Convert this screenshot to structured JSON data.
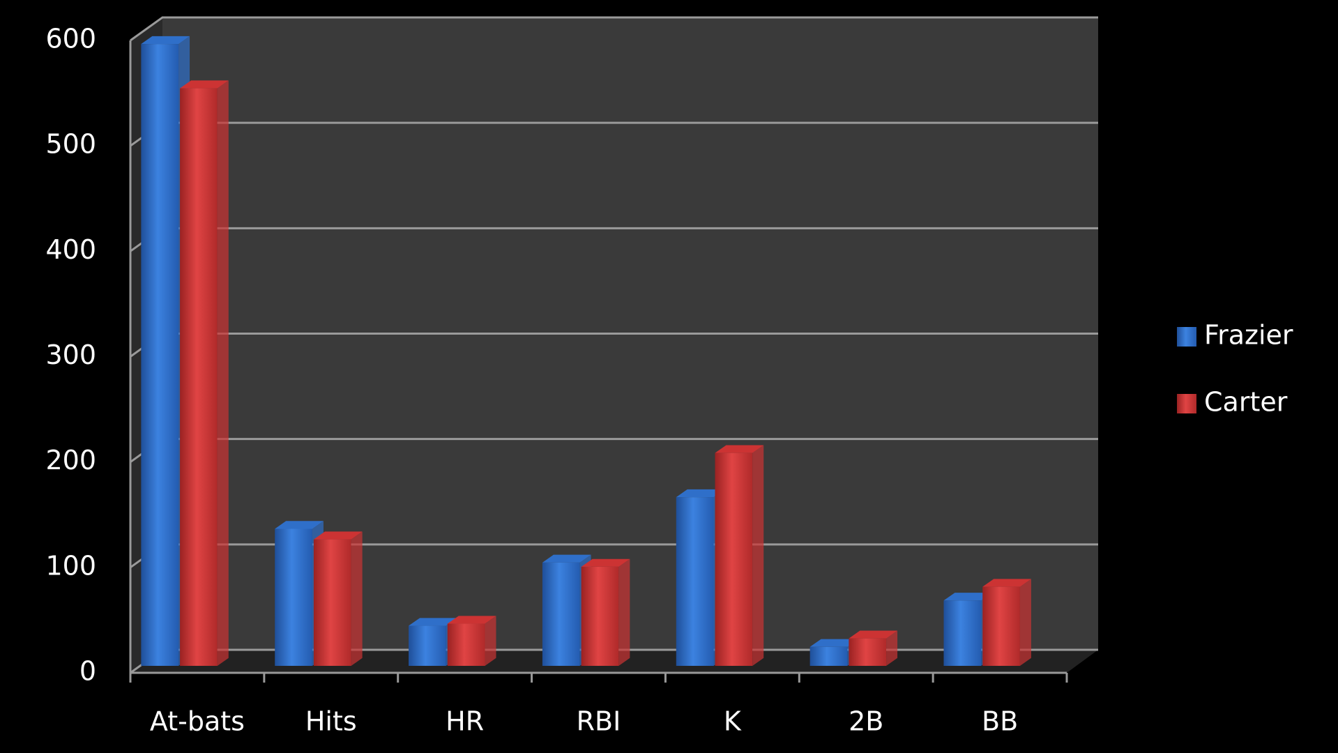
{
  "chart_data": {
    "type": "bar",
    "categories": [
      "At-bats",
      "Hits",
      "HR",
      "RBI",
      "K",
      "2B",
      "BB"
    ],
    "series": [
      {
        "name": "Frazier",
        "color": "#2f6fc9",
        "values": [
          590,
          130,
          38,
          98,
          160,
          18,
          62
        ]
      },
      {
        "name": "Carter",
        "color": "#cc3333",
        "values": [
          548,
          120,
          40,
          94,
          202,
          26,
          75
        ]
      }
    ],
    "ylim": [
      0,
      600
    ],
    "yticks": [
      0,
      100,
      200,
      300,
      400,
      500,
      600
    ],
    "grid": true,
    "legend": "right"
  }
}
